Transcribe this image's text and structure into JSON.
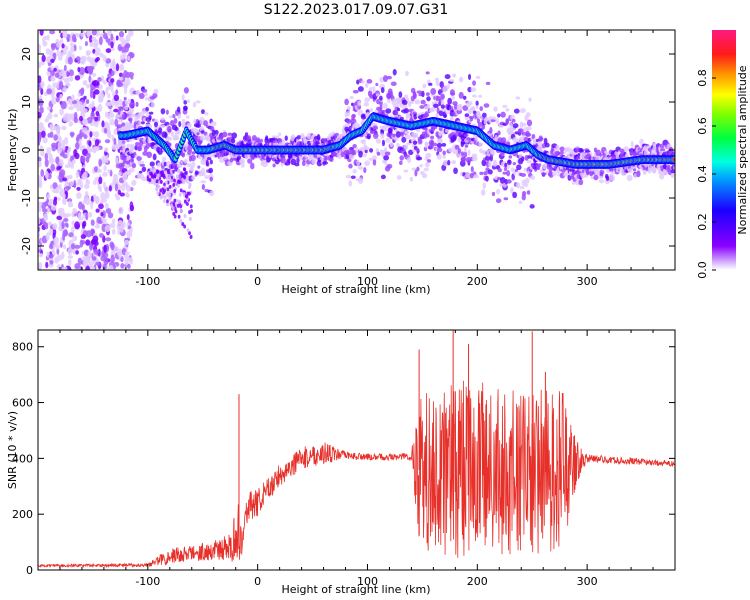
{
  "figure_title": "S122.2023.017.09.07.G31",
  "chart_data": [
    {
      "type": "heatmap",
      "name": "spectrogram",
      "title": "S122.2023.017.09.07.G31",
      "xlabel": "Height of straight line (km)",
      "ylabel": "Frequency (Hz)",
      "xlim": [
        -200,
        380
      ],
      "ylim": [
        -25,
        25
      ],
      "xticks": [
        -100,
        0,
        100,
        200,
        300
      ],
      "yticks": [
        -20,
        -10,
        0,
        10,
        20
      ],
      "colorbar": {
        "label": "Normalized spectral amplitude",
        "range": [
          0,
          1
        ],
        "ticks": [
          "0.0",
          "0.2",
          "0.4",
          "0.6",
          "0.8"
        ],
        "colormap": "rainbow (white → purple → blue → cyan → green → yellow → orange → red)"
      },
      "ridge": {
        "x": [
          -120,
          -100,
          -85,
          -75,
          -65,
          -55,
          -45,
          -30,
          -20,
          0,
          20,
          40,
          60,
          75,
          85,
          95,
          105,
          120,
          140,
          160,
          180,
          200,
          215,
          230,
          245,
          255,
          265,
          290,
          320,
          350,
          380
        ],
        "y": [
          3,
          4,
          1,
          -2,
          4,
          0,
          0,
          1,
          0,
          0,
          0,
          0,
          0,
          1,
          3,
          4,
          7,
          6,
          5,
          6,
          5,
          4,
          1,
          0,
          1,
          -1,
          -2,
          -3,
          -3,
          -2,
          -2
        ]
      },
      "noise_band_x": [
        -200,
        -120
      ],
      "grid": false
    },
    {
      "type": "line",
      "name": "snr",
      "xlabel": "Height of straight line (km)",
      "ylabel": "SNR (10 * v/v)",
      "xlim": [
        -200,
        380
      ],
      "ylim": [
        0,
        860
      ],
      "xticks": [
        -100,
        0,
        100,
        200,
        300
      ],
      "yticks": [
        0,
        200,
        400,
        600,
        800
      ],
      "color": "#e8302a",
      "envelope": {
        "x": [
          -200,
          -100,
          -80,
          -60,
          -40,
          -25,
          -18,
          -15,
          -10,
          0,
          20,
          40,
          60,
          80,
          100,
          130,
          140,
          145,
          160,
          180,
          200,
          220,
          240,
          260,
          280,
          290,
          300,
          320,
          340,
          360,
          380
        ],
        "mean": [
          15,
          18,
          50,
          60,
          70,
          80,
          150,
          100,
          220,
          240,
          340,
          400,
          420,
          410,
          405,
          405,
          410,
          360,
          350,
          360,
          370,
          350,
          340,
          350,
          360,
          390,
          400,
          395,
          390,
          385,
          380
        ],
        "spread": [
          4,
          6,
          30,
          30,
          35,
          50,
          120,
          60,
          60,
          50,
          40,
          40,
          40,
          15,
          12,
          12,
          20,
          260,
          300,
          320,
          310,
          300,
          300,
          300,
          280,
          80,
          15,
          12,
          12,
          10,
          10
        ]
      },
      "spikes": [
        {
          "x": -17,
          "y": 630
        },
        {
          "x": 147,
          "y": 790
        },
        {
          "x": 178,
          "y": 860
        },
        {
          "x": 192,
          "y": 810
        },
        {
          "x": 250,
          "y": 855
        },
        {
          "x": 262,
          "y": 710
        }
      ],
      "grid": false
    }
  ]
}
